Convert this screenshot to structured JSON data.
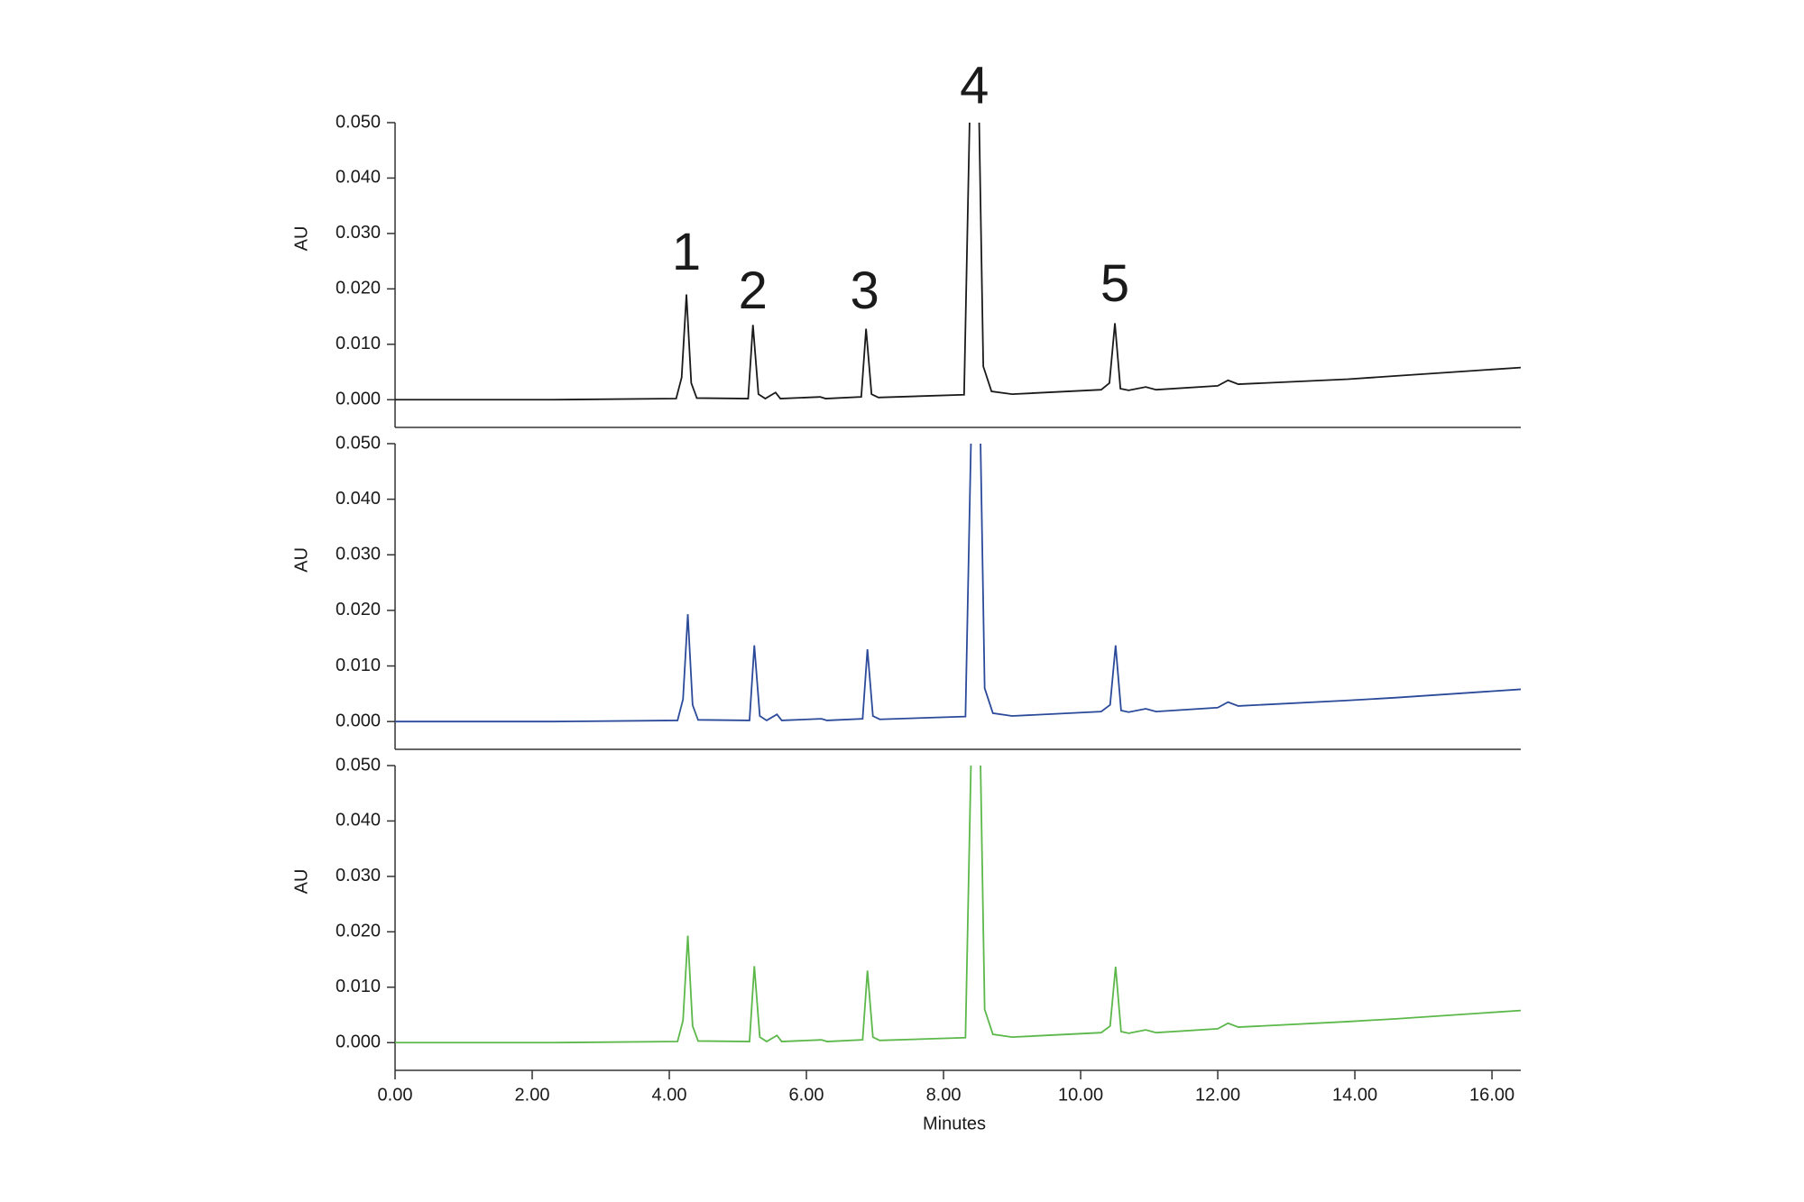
{
  "chart_data": [
    {
      "type": "line",
      "ylabel": "AU",
      "ylim": [
        -0.005,
        0.05
      ],
      "yticks": [
        {
          "value": 0,
          "label": "0.000"
        },
        {
          "value": 0.01,
          "label": "0.010"
        },
        {
          "value": 0.02,
          "label": "0.020"
        },
        {
          "value": 0.03,
          "label": "0.030"
        },
        {
          "value": 0.04,
          "label": "0.040"
        },
        {
          "value": 0.05,
          "label": "0.050"
        }
      ],
      "xlim": [
        0,
        16.42
      ],
      "color": "#1a1a1a",
      "x": [
        0,
        2.3,
        4.1,
        4.18,
        4.25,
        4.32,
        4.4,
        5.15,
        5.22,
        5.3,
        5.4,
        5.55,
        5.62,
        6.2,
        6.28,
        6.8,
        6.87,
        6.95,
        7.05,
        8.3,
        8.38,
        8.45,
        8.52,
        8.58,
        8.7,
        9.0,
        10.3,
        10.42,
        10.5,
        10.58,
        10.7,
        10.95,
        11.1,
        12.0,
        12.15,
        12.3,
        13.9,
        14.6,
        16.42
      ],
      "values": [
        0,
        0,
        0.0002,
        0.004,
        0.019,
        0.003,
        0.0003,
        0.0002,
        0.0135,
        0.001,
        0.0002,
        0.0013,
        0.0002,
        0.0005,
        0.0002,
        0.0005,
        0.0128,
        0.001,
        0.0004,
        0.0009,
        0.05,
        null,
        0.05,
        0.006,
        0.0015,
        0.001,
        0.0018,
        0.003,
        0.0138,
        0.002,
        0.0017,
        0.0023,
        0.0018,
        0.0025,
        0.0035,
        0.0028,
        0.0037,
        0.0043,
        0.0058
      ],
      "annotations": [
        {
          "text": "1",
          "x": 4.25,
          "y": 0.026
        },
        {
          "text": "2",
          "x": 5.22,
          "y": 0.019
        },
        {
          "text": "3",
          "x": 6.85,
          "y": 0.019
        },
        {
          "text": "4",
          "x": 8.45,
          "y": 0.056
        },
        {
          "text": "5",
          "x": 10.5,
          "y": 0.0203
        }
      ]
    },
    {
      "type": "line",
      "ylabel": "AU",
      "ylim": [
        -0.005,
        0.05
      ],
      "yticks": [
        {
          "value": 0,
          "label": "0.000"
        },
        {
          "value": 0.01,
          "label": "0.010"
        },
        {
          "value": 0.02,
          "label": "0.020"
        },
        {
          "value": 0.03,
          "label": "0.030"
        },
        {
          "value": 0.04,
          "label": "0.040"
        },
        {
          "value": 0.05,
          "label": "0.050"
        }
      ],
      "xlim": [
        0,
        16.42
      ],
      "color": "#2b4a9a",
      "x": [
        0,
        2.3,
        4.12,
        4.2,
        4.27,
        4.34,
        4.42,
        5.17,
        5.24,
        5.32,
        5.42,
        5.57,
        5.64,
        6.22,
        6.3,
        6.82,
        6.89,
        6.97,
        7.07,
        8.32,
        8.4,
        8.47,
        8.54,
        8.6,
        8.72,
        9.0,
        10.3,
        10.43,
        10.51,
        10.59,
        10.7,
        10.95,
        11.1,
        12.0,
        12.15,
        12.3,
        13.9,
        14.6,
        16.42
      ],
      "values": [
        0,
        0,
        0.0002,
        0.004,
        0.0193,
        0.003,
        0.0003,
        0.0002,
        0.0137,
        0.001,
        0.0002,
        0.0013,
        0.0002,
        0.0005,
        0.0002,
        0.0005,
        0.013,
        0.001,
        0.0004,
        0.0009,
        0.05,
        null,
        0.05,
        0.006,
        0.0015,
        0.001,
        0.0018,
        0.003,
        0.0137,
        0.002,
        0.0017,
        0.0023,
        0.0018,
        0.0025,
        0.0035,
        0.0028,
        0.0038,
        0.0043,
        0.0058
      ]
    },
    {
      "type": "line",
      "ylabel": "AU",
      "xlabel": "Minutes",
      "ylim": [
        -0.005,
        0.05
      ],
      "yticks": [
        {
          "value": 0,
          "label": "0.000"
        },
        {
          "value": 0.01,
          "label": "0.010"
        },
        {
          "value": 0.02,
          "label": "0.020"
        },
        {
          "value": 0.03,
          "label": "0.030"
        },
        {
          "value": 0.04,
          "label": "0.040"
        },
        {
          "value": 0.05,
          "label": "0.050"
        }
      ],
      "xlim": [
        0,
        16.42
      ],
      "xticks": [
        {
          "value": 0,
          "label": "0.00"
        },
        {
          "value": 2,
          "label": "2.00"
        },
        {
          "value": 4,
          "label": "4.00"
        },
        {
          "value": 6,
          "label": "6.00"
        },
        {
          "value": 8,
          "label": "8.00"
        },
        {
          "value": 10,
          "label": "10.00"
        },
        {
          "value": 12,
          "label": "12.00"
        },
        {
          "value": 14,
          "label": "14.00"
        },
        {
          "value": 16,
          "label": "16.00"
        }
      ],
      "color": "#5cb84a",
      "x": [
        0,
        2.3,
        4.12,
        4.2,
        4.27,
        4.34,
        4.42,
        5.17,
        5.24,
        5.32,
        5.42,
        5.57,
        5.64,
        6.22,
        6.3,
        6.82,
        6.89,
        6.97,
        7.07,
        8.32,
        8.4,
        8.47,
        8.54,
        8.6,
        8.72,
        9.0,
        10.3,
        10.43,
        10.51,
        10.59,
        10.7,
        10.95,
        11.1,
        12.0,
        12.15,
        12.3,
        13.9,
        14.6,
        16.42
      ],
      "values": [
        0,
        0,
        0.0002,
        0.004,
        0.0193,
        0.003,
        0.0003,
        0.0002,
        0.0138,
        0.001,
        0.0002,
        0.0013,
        0.0002,
        0.0005,
        0.0002,
        0.0005,
        0.013,
        0.001,
        0.0004,
        0.0009,
        0.05,
        null,
        0.05,
        0.006,
        0.0015,
        0.001,
        0.0018,
        0.003,
        0.0137,
        0.002,
        0.0017,
        0.0023,
        0.0018,
        0.0025,
        0.0035,
        0.0028,
        0.0038,
        0.0043,
        0.0058
      ]
    }
  ]
}
